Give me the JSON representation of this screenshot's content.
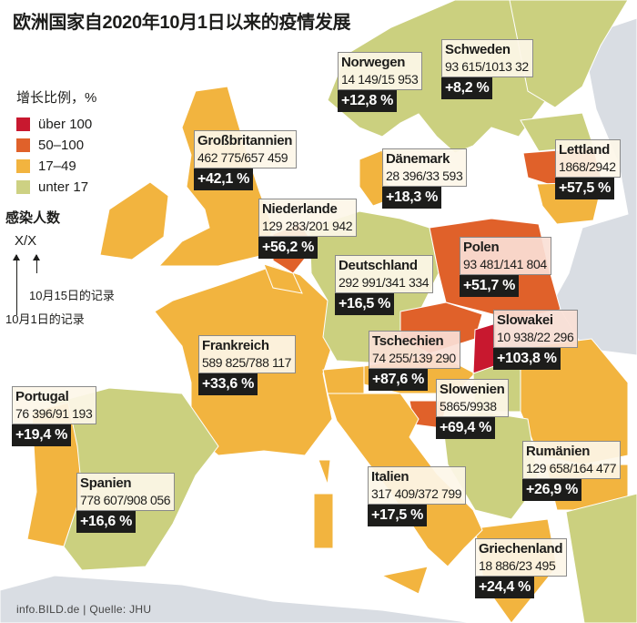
{
  "title": "欧洲国家自2020年10月1日以来的疫情发展",
  "legend": {
    "title": "增长比例，%",
    "items": [
      {
        "label": "über 100",
        "color": "#c8182f"
      },
      {
        "label": "50–100",
        "color": "#e0612a"
      },
      {
        "label": "17–49",
        "color": "#f2b43f"
      },
      {
        "label": "unter 17",
        "color": "#cdd183"
      }
    ]
  },
  "key": {
    "title": "感染人数",
    "format": "X/X",
    "oct15": "10月15日的记录",
    "oct1": "10月1日的记录"
  },
  "countries": [
    {
      "name": "Norwegen",
      "cases": "14 149/15 953",
      "change": "+12,8 %",
      "category": "unter 17"
    },
    {
      "name": "Schweden",
      "cases": "93 615/1013 32",
      "change": "+8,2 %",
      "category": "unter 17"
    },
    {
      "name": "Großbritannien",
      "cases": "462 775/657 459",
      "change": "+42,1 %",
      "category": "17–49"
    },
    {
      "name": "Dänemark",
      "cases": "28 396/33 593",
      "change": "+18,3 %",
      "category": "17–49"
    },
    {
      "name": "Lettland",
      "cases": "1868/2942",
      "change": "+57,5 %",
      "category": "50–100"
    },
    {
      "name": "Niederlande",
      "cases": "129 283/201 942",
      "change": "+56,2 %",
      "category": "50–100"
    },
    {
      "name": "Deutschland",
      "cases": "292 991/341 334",
      "change": "+16,5 %",
      "category": "unter 17"
    },
    {
      "name": "Polen",
      "cases": "93 481/141 804",
      "change": "+51,7 %",
      "category": "50–100"
    },
    {
      "name": "Slowakei",
      "cases": "10 938/22 296",
      "change": "+103,8 %",
      "category": "über 100"
    },
    {
      "name": "Tschechien",
      "cases": "74 255/139 290",
      "change": "+87,6 %",
      "category": "50–100"
    },
    {
      "name": "Frankreich",
      "cases": "589 825/788 117",
      "change": "+33,6 %",
      "category": "17–49"
    },
    {
      "name": "Slowenien",
      "cases": "5865/9938",
      "change": "+69,4 %",
      "category": "50–100"
    },
    {
      "name": "Portugal",
      "cases": "76 396/91 193",
      "change": "+19,4 %",
      "category": "17–49"
    },
    {
      "name": "Rumänien",
      "cases": "129 658/164 477",
      "change": "+26,9 %",
      "category": "17–49"
    },
    {
      "name": "Spanien",
      "cases": "778 607/908 056",
      "change": "+16,6 %",
      "category": "unter 17"
    },
    {
      "name": "Italien",
      "cases": "317 409/372 799",
      "change": "+17,5 %",
      "category": "17–49"
    },
    {
      "name": "Griechenland",
      "cases": "18 886/23 495",
      "change": "+24,4 %",
      "category": "17–49"
    }
  ],
  "footer": "info.BILD.de | Quelle: JHU"
}
